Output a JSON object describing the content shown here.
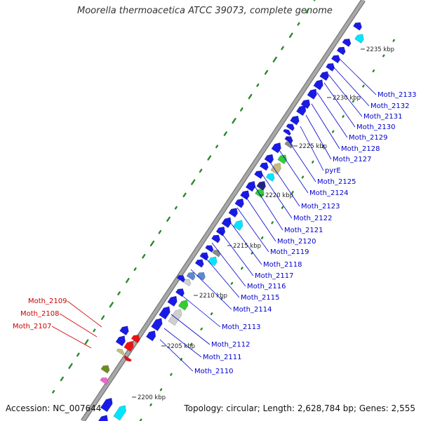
{
  "title": "Moorella thermoacetica ATCC 39073, complete genome",
  "footer": {
    "accession": "Accession: NC_007644",
    "summary": "Topology: circular; Length: 2,628,784 bp; Genes: 2,555"
  },
  "colors": {
    "backbone": "#a8a8a8",
    "forward_gene": "#1a1ae6",
    "cyan_gene": "#00e5ff",
    "green_gene": "#33cc33",
    "khaki_gene": "#c8bb80",
    "steel_gene": "#5a8bd0",
    "grey_gene": "#8a8a8a",
    "red_gene": "#ee1111",
    "olive_gene": "#6b8e23",
    "blue_label": "#0000cc",
    "red_label": "#cc0000",
    "gc_dots": "#2a8a2a"
  },
  "kbp_ticks": [
    "2200 kbp",
    "2205 kbp",
    "2210 kbp",
    "2215 kbp",
    "2220 kbp",
    "2225 kbp",
    "2230 kbp",
    "2235 kbp"
  ],
  "gene_labels_right": [
    "Moth_2133",
    "Moth_2132",
    "Moth_2131",
    "Moth_2130",
    "Moth_2129",
    "Moth_2128",
    "Moth_2127",
    "pyrE",
    "Moth_2125",
    "Moth_2124",
    "Moth_2123",
    "Moth_2122",
    "Moth_2121",
    "Moth_2120",
    "Moth_2119",
    "Moth_2118",
    "Moth_2117",
    "Moth_2116",
    "Moth_2115",
    "Moth_2114",
    "Moth_2113",
    "Moth_2112",
    "Moth_2111",
    "Moth_2110"
  ],
  "gene_labels_left": [
    "Moth_2109",
    "Moth_2108",
    "Moth_2107"
  ]
}
